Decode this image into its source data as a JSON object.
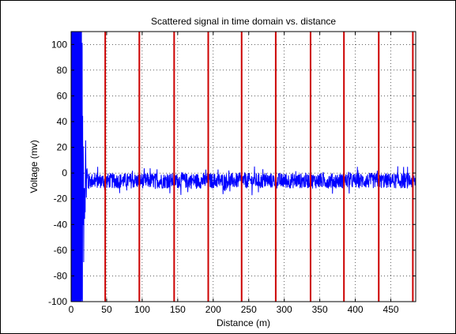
{
  "chart_data": {
    "type": "line",
    "title": "Scattered signal in time domain vs. distance",
    "xlabel": "Distance (m)",
    "ylabel": "Voltage (mv)",
    "xlim": [
      0,
      485
    ],
    "ylim": [
      -100,
      110
    ],
    "xticks": [
      0,
      50,
      100,
      150,
      200,
      250,
      300,
      350,
      400,
      450
    ],
    "yticks": [
      -100,
      -80,
      -60,
      -40,
      -20,
      0,
      20,
      40,
      60,
      80,
      100
    ],
    "grid": true,
    "grid_style": "dotted",
    "series": [
      {
        "color": "#0000ff",
        "description_points": {
          "x_range": [
            0,
            485
          ],
          "near_field_region_x": [
            0,
            25
          ],
          "near_field_amplitude_range": [
            -100,
            110
          ],
          "baseline_mean": -6,
          "baseline_noise_peak_to_peak": 12
        }
      }
    ],
    "vertical_markers": {
      "color": "#cc0000",
      "x": [
        48,
        96,
        145,
        193,
        240,
        288,
        337,
        384,
        433,
        481
      ]
    },
    "legend": "none"
  }
}
